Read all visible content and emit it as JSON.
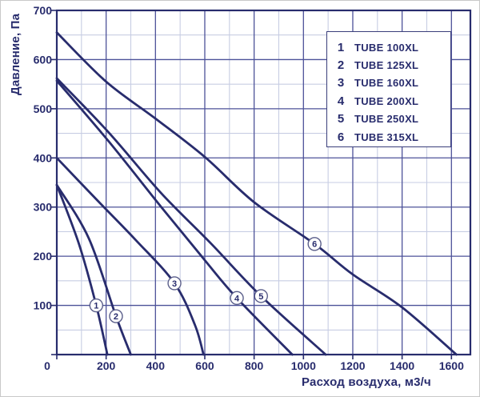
{
  "chart_data": {
    "type": "line",
    "title": "",
    "xlabel": "Расход воздуха, м3/ч",
    "ylabel": "Давление, Па",
    "xlim": [
      0,
      1680
    ],
    "ylim": [
      0,
      700
    ],
    "x_ticks": [
      0,
      200,
      400,
      600,
      800,
      1000,
      1200,
      1400,
      1600
    ],
    "y_ticks": [
      0,
      100,
      200,
      300,
      400,
      500,
      600,
      700
    ],
    "x_minor_step": 100,
    "y_minor_step": 50,
    "grid": "major+minor",
    "origin_label": "0",
    "legend_position": "top-right",
    "series": [
      {
        "num": "1",
        "name": "TUBE 100XL",
        "marker_at": [
          160,
          100
        ],
        "points": [
          [
            0,
            345
          ],
          [
            90,
            225
          ],
          [
            160,
            100
          ],
          [
            205,
            0
          ]
        ]
      },
      {
        "num": "2",
        "name": "TUBE 125XL",
        "marker_at": [
          240,
          78
        ],
        "points": [
          [
            0,
            345
          ],
          [
            130,
            236
          ],
          [
            240,
            78
          ],
          [
            300,
            0
          ]
        ]
      },
      {
        "num": "3",
        "name": "TUBE 160XL",
        "marker_at": [
          477,
          145
        ],
        "points": [
          [
            0,
            400
          ],
          [
            160,
            316
          ],
          [
            320,
            233
          ],
          [
            477,
            145
          ],
          [
            560,
            60
          ],
          [
            595,
            0
          ]
        ]
      },
      {
        "num": "4",
        "name": "TUBE 200XL",
        "marker_at": [
          730,
          115
        ],
        "points": [
          [
            0,
            557
          ],
          [
            210,
            434
          ],
          [
            422,
            301
          ],
          [
            600,
            192
          ],
          [
            730,
            115
          ],
          [
            955,
            0
          ]
        ]
      },
      {
        "num": "5",
        "name": "TUBE 250XL",
        "marker_at": [
          828,
          119
        ],
        "points": [
          [
            0,
            562
          ],
          [
            210,
            452
          ],
          [
            422,
            329
          ],
          [
            625,
            226
          ],
          [
            828,
            119
          ],
          [
            1090,
            0
          ]
        ]
      },
      {
        "num": "6",
        "name": "TUBE 315XL",
        "marker_at": [
          1045,
          225
        ],
        "points": [
          [
            0,
            655
          ],
          [
            200,
            555
          ],
          [
            400,
            480
          ],
          [
            600,
            402
          ],
          [
            800,
            310
          ],
          [
            1045,
            225
          ],
          [
            1200,
            163
          ],
          [
            1400,
            96
          ],
          [
            1620,
            0
          ]
        ]
      }
    ],
    "colors": {
      "line": "#282c6d",
      "grid_major": "#4d5299",
      "grid_minor": "#c7cde3",
      "text": "#282c6d",
      "marker_stroke": "#5a5e8a",
      "background": "#ffffff"
    }
  }
}
